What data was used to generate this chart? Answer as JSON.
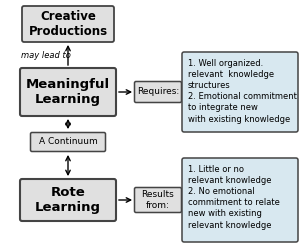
{
  "bg_color": "#ffffff",
  "box_fill_main": "#e0e0e0",
  "box_fill_info": "#d8e8f0",
  "creative_text": "Creative\nProductions",
  "meaningful_text": "Meaningful\nLearning",
  "continuum_text": "A Continuum",
  "rote_text": "Rote\nLearning",
  "requires_text": "Requires:",
  "results_text": "Results\nfrom:",
  "may_lead_to_text": "may lead to",
  "meaningful_info": "1. Well organized.\nrelevant  knowledge\nstructures\n2. Emotional commitment\nto integrate new\nwith existing knowledge",
  "rote_info": "1. Little or no\nrelevant knowledge\n2. No emotional\ncommitment to relate\nnew with existing\nrelevant knowledge",
  "edge_color": "#444444"
}
